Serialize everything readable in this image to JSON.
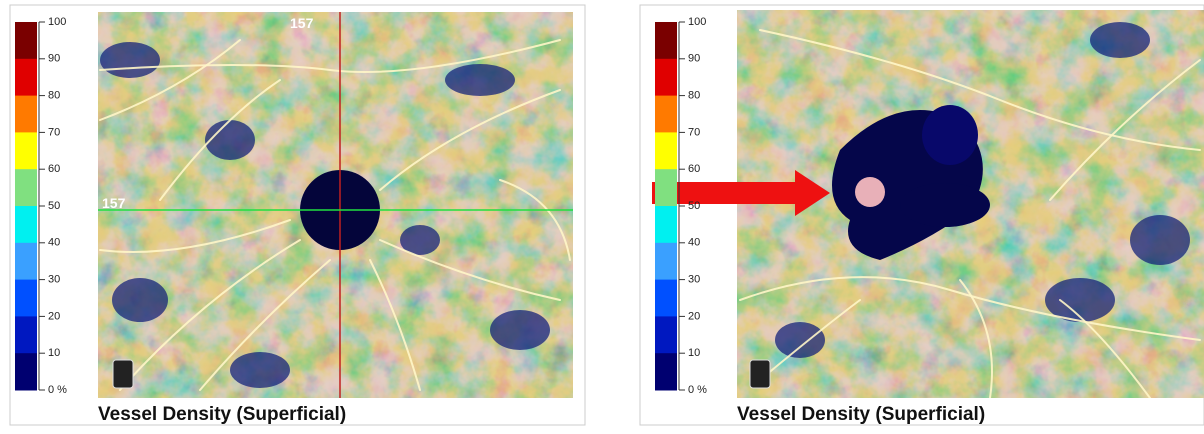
{
  "panels": [
    {
      "scale": {
        "labels": [
          "100",
          "90",
          "80",
          "70",
          "60",
          "50",
          "40",
          "30",
          "20",
          "10",
          "0 %"
        ]
      },
      "crosshair": {
        "top_label": "157",
        "left_label": "157"
      },
      "caption": "Vessel Density (Superficial)"
    },
    {
      "scale": {
        "labels": [
          "100",
          "90",
          "80",
          "70",
          "60",
          "50",
          "40",
          "30",
          "20",
          "10",
          "0 %"
        ]
      },
      "caption": "Vessel Density (Superficial)"
    }
  ],
  "scale_colors": [
    "#7a0000",
    "#e00000",
    "#ff7a00",
    "#ffff00",
    "#80e080",
    "#00f0f0",
    "#3aa0ff",
    "#0050ff",
    "#0018c0",
    "#000070"
  ]
}
